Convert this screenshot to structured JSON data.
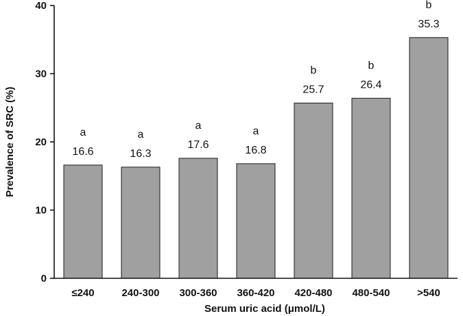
{
  "chart_data": {
    "type": "bar",
    "categories": [
      "≤240",
      "240-300",
      "300-360",
      "360-420",
      "420-480",
      "480-540",
      ">540"
    ],
    "values": [
      16.6,
      16.3,
      17.6,
      16.8,
      25.7,
      26.4,
      35.3
    ],
    "value_labels": [
      "16.6",
      "16.3",
      "17.6",
      "16.8",
      "25.7",
      "26.4",
      "35.3"
    ],
    "letters": [
      "a",
      "a",
      "a",
      "a",
      "b",
      "b",
      "b"
    ],
    "xlabel": "Serum uric acid (μmol/L)",
    "ylabel": "Prevalence  of SRC (%)",
    "ylim": [
      0,
      40
    ],
    "yticks": [
      0,
      10,
      20,
      30,
      40
    ],
    "ytick_labels": [
      "0",
      "10",
      "20",
      "30",
      "40"
    ],
    "grid": false,
    "bar_color": "#a0a0a0"
  }
}
